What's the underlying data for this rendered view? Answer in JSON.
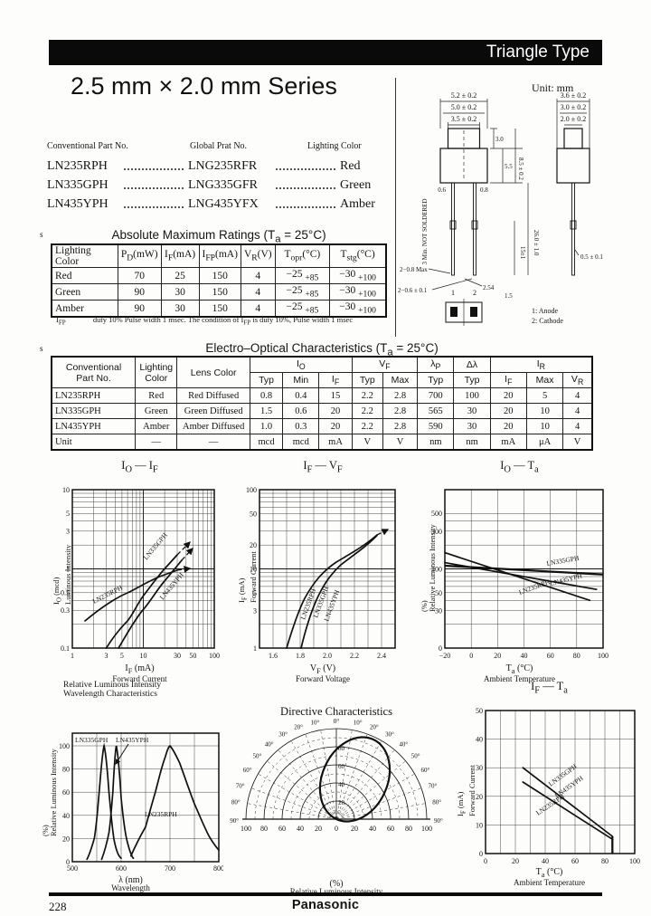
{
  "page": {
    "header_title": "Triangle Type",
    "series_title": "2.5 mm × 2.0 mm Series",
    "page_number": "228",
    "brand": "Panasonic"
  },
  "part_list": {
    "headers": [
      "Conventional Part No.",
      "Global Prat No.",
      "Lighting Color"
    ],
    "rows": [
      [
        "LN235RPH",
        "LNG235RFR",
        "Red"
      ],
      [
        "LN335GPH",
        "LNG335GFR",
        "Green"
      ],
      [
        "LN435YPH",
        "LNG435YFX",
        "Amber"
      ]
    ]
  },
  "abs_max": {
    "marker": "s",
    "title": "Absolute Maximum Ratings (T~a~ = 25°C)",
    "headers": [
      "Lighting Color",
      "P~D~(mW)",
      "I~F~(mA)",
      "I~FP~(mA)",
      "V~R~(V)",
      "T~opr~(°C)",
      "T~stg~(°C)"
    ],
    "rows": [
      [
        "Red",
        "70",
        "25",
        "150",
        "4",
        "−25 ~ +85",
        "−30 ~ +100"
      ],
      [
        "Green",
        "90",
        "30",
        "150",
        "4",
        "−25 ~ +85",
        "−30 ~ +100"
      ],
      [
        "Amber",
        "90",
        "30",
        "150",
        "4",
        "−25 ~ +85",
        "−30 ~ +100"
      ]
    ],
    "footnote_label": "I~FP~",
    "footnote_text": "duty 10% Pulse width 1 msec. The condition of I~FP~ is duty 10%, Pulse width 1 msec"
  },
  "eo": {
    "marker": "s",
    "title": "Electro–Optical Characteristics (T~a~ = 25°C)",
    "h_part": "Conventional\nPart No.",
    "h_lighting": "Lighting\nColor",
    "h_lens": "Lens Color",
    "g_io": "I~O~",
    "g_vf": "V~F~",
    "g_lp": "λ~P~",
    "g_dl": "Δλ",
    "g_ir": "I~R~",
    "sub": [
      "Typ",
      "Min",
      "I~F~",
      "Typ",
      "Max",
      "Typ",
      "Typ",
      "I~F~",
      "Max",
      "V~R~"
    ],
    "rows": [
      [
        "LN235RPH",
        "Red",
        "Red Diffused",
        "0.8",
        "0.4",
        "15",
        "2.2",
        "2.8",
        "700",
        "100",
        "20",
        "5",
        "4"
      ],
      [
        "LN335GPH",
        "Green",
        "Green Diffused",
        "1.5",
        "0.6",
        "20",
        "2.2",
        "2.8",
        "565",
        "30",
        "20",
        "10",
        "4"
      ],
      [
        "LN435YPH",
        "Amber",
        "Amber Diffused",
        "1.0",
        "0.3",
        "20",
        "2.2",
        "2.8",
        "590",
        "30",
        "20",
        "10",
        "4"
      ],
      [
        "Unit",
        "—",
        "—",
        "mcd",
        "mcd",
        "mA",
        "V",
        "V",
        "nm",
        "nm",
        "mA",
        "μA",
        "V"
      ]
    ]
  },
  "drawing": {
    "unit_note": "Unit: mm",
    "note": "3 Min. NOT SOLDERED",
    "front_dims": [
      "5.2 ± 0.2",
      "5.0 ± 0.2",
      "3.5 ± 0.2"
    ],
    "side_dims": [
      "3.6 ± 0.2",
      "3.0 ± 0.2",
      "2.0 ± 0.2"
    ],
    "height_dims": [
      "3.0",
      "5.5",
      "8.5 ± 0.2"
    ],
    "lead_dims": {
      "w1": "0.6",
      "w2": "0.8",
      "l1": "15±1",
      "l2": "26.0 ± 1.0",
      "tip": "2−0.8 Max",
      "dia": "2−0.6 ± 0.1",
      "pitch": "2.54",
      "edge": "1.5",
      "side_lead": "0.5 ± 0.1"
    },
    "pins": [
      "1",
      "2"
    ],
    "legend": [
      "1: Anode",
      "2: Cathode"
    ]
  },
  "charts": {
    "c1": {
      "title": "I~O~ — I~F~",
      "ylab1": "I~O~ (mcd)",
      "ylab2": "Luminous Intensity",
      "xlab1": "I~F~ (mA)",
      "xlab2": "Forward Current",
      "xticks": [
        "1",
        "3",
        "5",
        "10",
        "30",
        "50",
        "100"
      ],
      "yticks": [
        "10",
        "5",
        "3",
        "1",
        "0.5",
        "0.3",
        "0.1"
      ],
      "s1": "LN235RPH",
      "s2": "LN335GPH",
      "s3": "LN435YPH"
    },
    "c2": {
      "title": "I~F~ — V~F~",
      "ylab1": "I~F~ (mA)",
      "ylab2": "Forward Current",
      "xlab1": "V~F~ (V)",
      "xlab2": "Forward Voltage",
      "xticks": [
        "1.6",
        "1.8",
        "2.0",
        "2.2",
        "2.4"
      ],
      "yticks": [
        "100",
        "50",
        "20",
        "10",
        "5",
        "3",
        "1"
      ],
      "s1": "LN235RPH",
      "s2": "LN335GPH",
      "s3": "LN435YPH"
    },
    "c3": {
      "title": "I~O~ — T~a~",
      "ylab1": "(%)",
      "ylab2": "Relative Luminous Intensity",
      "xlab1": "T~a~ (°C)",
      "xlab2": "Ambient Temperature",
      "xticks": [
        "−20",
        "0",
        "20",
        "40",
        "60",
        "80",
        "100"
      ],
      "yticks": [
        "500",
        "300",
        "100",
        "50",
        "30",
        "0"
      ],
      "s1": "LN335GPH",
      "s2": "LN435YPH",
      "s3": "LN235RPH"
    },
    "c4": {
      "title1": "Relative Luminous Intensity",
      "title2": "Wavelength Characteristics",
      "ylab1": "(%)",
      "ylab2": "Relative Luminous Intensity",
      "xlab1": "λ (nm)",
      "xlab2": "Wavelength",
      "xticks": [
        "500",
        "600",
        "700",
        "800"
      ],
      "yticks": [
        "100",
        "80",
        "60",
        "40",
        "20",
        "0"
      ],
      "s1": "LN335GPH",
      "s2": "LN435YPH",
      "s3": "LN235RPH"
    },
    "c5": {
      "title": "Directive Characteristics",
      "xlab1": "(%)",
      "xlab2": "Relative Luminous Intensity",
      "angle_top": "0°",
      "angles": [
        "10°",
        "20°",
        "30°",
        "40°",
        "50°",
        "60°",
        "70°",
        "80°",
        "90°"
      ],
      "radial": [
        "80",
        "60",
        "40",
        "20"
      ],
      "bottom": [
        "100",
        "80",
        "60",
        "40",
        "20",
        "0",
        "20",
        "40",
        "60",
        "80",
        "100"
      ]
    },
    "c6": {
      "title": "I~F~ — T~a~",
      "ylab1": "I~F~ (mA)",
      "ylab2": "Forward Current",
      "xlab1": "T~a~ (°C)",
      "xlab2": "Ambient Temperature",
      "xticks": [
        "0",
        "20",
        "40",
        "60",
        "80",
        "100"
      ],
      "yticks": [
        "50",
        "40",
        "30",
        "20",
        "10",
        "0"
      ],
      "s1": "LN335GPH",
      "s2": "LN435YPH",
      "s3": "LN235RPH"
    }
  },
  "chart_data": [
    {
      "type": "line",
      "title": "IO — IF",
      "xlabel": "Forward Current IF (mA)",
      "ylabel": "Luminous Intensity IO (mcd)",
      "xscale": "log",
      "yscale": "log",
      "xlim": [
        1,
        100
      ],
      "ylim": [
        0.1,
        10
      ],
      "grid": true,
      "series": [
        {
          "name": "LN235RPH",
          "points": [
            [
              1.5,
              0.22
            ],
            [
              3,
              0.35
            ],
            [
              6,
              0.5
            ],
            [
              10,
              0.63
            ],
            [
              20,
              0.85
            ],
            [
              30,
              0.95
            ],
            [
              45,
              1.0
            ]
          ]
        },
        {
          "name": "LN335GPH",
          "points": [
            [
              3,
              0.1
            ],
            [
              6,
              0.22
            ],
            [
              10,
              0.45
            ],
            [
              20,
              1.0
            ],
            [
              30,
              1.5
            ],
            [
              45,
              2.2
            ]
          ]
        },
        {
          "name": "LN435YPH",
          "points": [
            [
              4.5,
              0.1
            ],
            [
              10,
              0.3
            ],
            [
              20,
              0.7
            ],
            [
              35,
              1.3
            ],
            [
              50,
              1.8
            ]
          ]
        }
      ]
    },
    {
      "type": "line",
      "title": "IF — VF",
      "xlabel": "Forward Voltage VF (V)",
      "ylabel": "Forward Current IF (mA)",
      "xscale": "linear",
      "yscale": "log",
      "xlim": [
        1.5,
        2.5
      ],
      "ylim": [
        1,
        100
      ],
      "grid": true,
      "series": [
        {
          "name": "LN235RPH",
          "points": [
            [
              1.7,
              1
            ],
            [
              1.85,
              3
            ],
            [
              1.95,
              6
            ],
            [
              2.1,
              12
            ],
            [
              2.2,
              20
            ],
            [
              2.45,
              30
            ]
          ]
        },
        {
          "name": "LN335GPH / LN435YPH",
          "points": [
            [
              1.8,
              1
            ],
            [
              1.9,
              3
            ],
            [
              2.0,
              7
            ],
            [
              2.1,
              13
            ],
            [
              2.2,
              20
            ],
            [
              2.45,
              30
            ]
          ]
        }
      ]
    },
    {
      "type": "line",
      "title": "IO — Ta",
      "xlabel": "Ambient Temperature Ta (°C)",
      "ylabel": "Relative Luminous Intensity (%)",
      "xscale": "linear",
      "yscale": "log",
      "xlim": [
        -20,
        100
      ],
      "ylim": [
        10,
        1000
      ],
      "grid": true,
      "series": [
        {
          "name": "LN335GPH",
          "points": [
            [
              -20,
              110
            ],
            [
              100,
              85
            ]
          ]
        },
        {
          "name": "LN435YPH",
          "points": [
            [
              -20,
              120
            ],
            [
              95,
              55
            ]
          ]
        },
        {
          "name": "LN235RPH",
          "points": [
            [
              -20,
              160
            ],
            [
              90,
              40
            ]
          ]
        }
      ]
    },
    {
      "type": "line",
      "title": "Relative Luminous Intensity Wavelength Characteristics",
      "xlabel": "Wavelength λ (nm)",
      "ylabel": "Relative Luminous Intensity (%)",
      "xlim": [
        500,
        800
      ],
      "ylim": [
        0,
        100
      ],
      "grid": true,
      "series": [
        {
          "name": "LN335GPH",
          "peak_nm": 565,
          "points": [
            [
              530,
              2
            ],
            [
              545,
              20
            ],
            [
              555,
              60
            ],
            [
              565,
              100
            ],
            [
              575,
              60
            ],
            [
              585,
              20
            ],
            [
              600,
              3
            ]
          ]
        },
        {
          "name": "LN435YPH",
          "peak_nm": 590,
          "points": [
            [
              560,
              2
            ],
            [
              575,
              25
            ],
            [
              583,
              60
            ],
            [
              590,
              100
            ],
            [
              600,
              55
            ],
            [
              612,
              18
            ],
            [
              625,
              3
            ]
          ]
        },
        {
          "name": "LN235RPH",
          "peak_nm": 700,
          "points": [
            [
              620,
              5
            ],
            [
              650,
              30
            ],
            [
              670,
              60
            ],
            [
              690,
              90
            ],
            [
              700,
              100
            ],
            [
              720,
              85
            ],
            [
              750,
              50
            ],
            [
              780,
              22
            ],
            [
              800,
              10
            ]
          ]
        }
      ]
    },
    {
      "type": "polar",
      "title": "Directive Characteristics",
      "xlabel": "Relative Luminous Intensity (%)",
      "angle_range_deg": [
        -90,
        90
      ],
      "radial_ticks_pct": [
        20,
        40,
        60,
        80,
        100
      ],
      "lobe_points_deg_pct": [
        [
          -40,
          20
        ],
        [
          -30,
          40
        ],
        [
          -20,
          55
        ],
        [
          -10,
          68
        ],
        [
          0,
          80
        ],
        [
          10,
          92
        ],
        [
          20,
          98
        ],
        [
          30,
          100
        ],
        [
          40,
          95
        ],
        [
          50,
          80
        ],
        [
          60,
          55
        ],
        [
          70,
          30
        ],
        [
          80,
          10
        ]
      ]
    },
    {
      "type": "line",
      "title": "IF — Ta",
      "xlabel": "Ambient Temperature Ta (°C)",
      "ylabel": "Forward Current IF (mA)",
      "xlim": [
        0,
        100
      ],
      "ylim": [
        0,
        50
      ],
      "grid": true,
      "series": [
        {
          "name": "LN335GPH / LN435YPH",
          "points": [
            [
              25,
              30
            ],
            [
              85,
              6
            ],
            [
              85,
              0
            ]
          ]
        },
        {
          "name": "LN235RPH",
          "points": [
            [
              25,
              25
            ],
            [
              85,
              5
            ],
            [
              85,
              0
            ]
          ]
        }
      ]
    }
  ]
}
